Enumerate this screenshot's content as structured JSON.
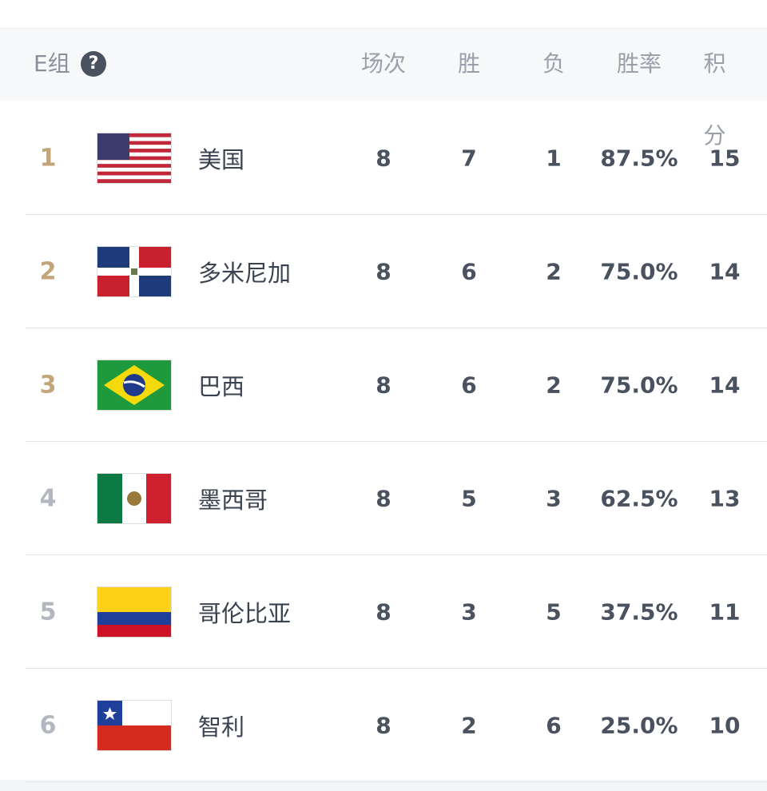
{
  "header": {
    "group": "E组",
    "help_icon": "?",
    "columns": [
      "场次",
      "胜",
      "负",
      "胜率",
      "积分"
    ]
  },
  "table": {
    "rows": [
      [
        "1",
        "美国",
        "8",
        "7",
        "1",
        "87.5%",
        "15"
      ],
      [
        "2",
        "多米尼加",
        "8",
        "6",
        "2",
        "75.0%",
        "14"
      ],
      [
        "3",
        "巴西",
        "8",
        "6",
        "2",
        "75.0%",
        "14"
      ],
      [
        "4",
        "墨西哥",
        "8",
        "5",
        "3",
        "62.5%",
        "13"
      ],
      [
        "5",
        "哥伦比亚",
        "8",
        "3",
        "5",
        "37.5%",
        "11"
      ],
      [
        "6",
        "智利",
        "8",
        "2",
        "6",
        "25.0%",
        "10"
      ]
    ]
  }
}
